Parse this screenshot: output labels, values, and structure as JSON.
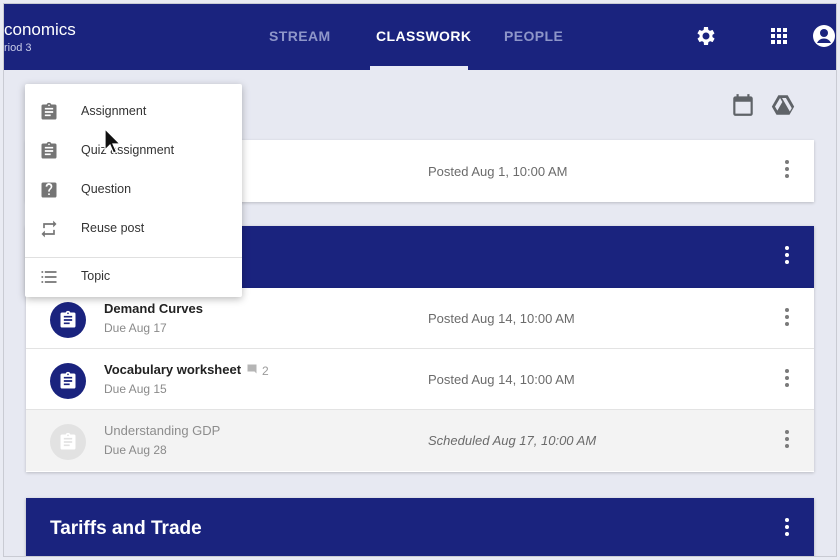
{
  "header": {
    "course_title": "conomics",
    "course_section": "riod 3",
    "tabs": [
      {
        "label": "STREAM",
        "active": false
      },
      {
        "label": "CLASSWORK",
        "active": true
      },
      {
        "label": "PEOPLE",
        "active": false
      }
    ],
    "icons": [
      "gear-icon",
      "apps-grid-icon",
      "account-icon"
    ]
  },
  "toolbar": {
    "icons": [
      "calendar-icon",
      "drive-icon"
    ]
  },
  "create_menu": {
    "items": [
      {
        "label": "Assignment",
        "icon": "assignment-icon"
      },
      {
        "label": "Quiz assignment",
        "icon": "quiz-assignment-icon"
      },
      {
        "label": "Question",
        "icon": "question-icon"
      },
      {
        "label": "Reuse post",
        "icon": "reuse-icon"
      },
      {
        "label": "Topic",
        "icon": "topic-list-icon"
      }
    ]
  },
  "first_card": {
    "posted": "Posted Aug 1, 10:00 AM"
  },
  "topic_section": {
    "items": [
      {
        "title": "Demand Curves",
        "due": "Due Aug 17",
        "posted": "Posted Aug 14, 10:00 AM",
        "comments": ""
      },
      {
        "title": "Vocabulary worksheet",
        "due": "Due Aug 15",
        "posted": "Posted Aug 14, 10:00 AM",
        "comments": "2"
      },
      {
        "title": "Understanding GDP",
        "due": "Due Aug 28",
        "posted": "Scheduled Aug 17, 10:00 AM",
        "comments": ""
      }
    ]
  },
  "second_topic": {
    "title": "Tariffs and Trade"
  },
  "colors": {
    "primary": "#1a237e",
    "background": "#e9ebf3",
    "tab_inactive": "#8e96c9"
  }
}
